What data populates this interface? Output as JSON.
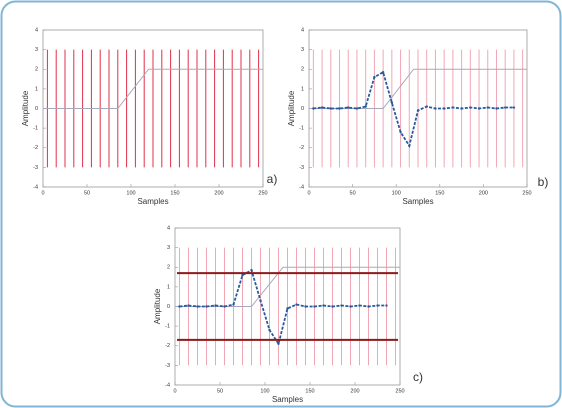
{
  "chart_data": [
    {
      "type": "line",
      "label": "a)",
      "xlabel": "Samples",
      "ylabel": "Amplitude",
      "xlim": [
        0,
        250
      ],
      "ylim": [
        -4,
        4
      ],
      "xticks": [
        0,
        50,
        100,
        150,
        200,
        250
      ],
      "yticks": [
        -4,
        -3,
        -2,
        -1,
        0,
        1,
        2,
        3,
        4
      ],
      "stems": {
        "x": [
          5,
          15,
          25,
          35,
          45,
          55,
          65,
          75,
          85,
          95,
          105,
          115,
          125,
          135,
          145,
          155,
          165,
          175,
          185,
          195,
          205,
          215,
          225,
          235,
          245
        ],
        "ymin": -3,
        "ymax": 3,
        "color": "#e0304a"
      },
      "series": [
        {
          "x": [
            0,
            85,
            120,
            250
          ],
          "values": [
            0,
            0,
            2,
            2
          ],
          "color": "#a8a8bc"
        }
      ]
    },
    {
      "type": "line",
      "label": "b)",
      "xlabel": "Samples",
      "ylabel": "Amplitude",
      "xlim": [
        0,
        250
      ],
      "ylim": [
        -4,
        4
      ],
      "xticks": [
        0,
        50,
        100,
        150,
        200,
        250
      ],
      "yticks": [
        -4,
        -3,
        -2,
        -1,
        0,
        1,
        2,
        3,
        4
      ],
      "stems": {
        "x": [
          5,
          15,
          25,
          35,
          45,
          55,
          65,
          75,
          85,
          95,
          105,
          115,
          125,
          135,
          145,
          155,
          165,
          175,
          185,
          195,
          205,
          215,
          225,
          235,
          245
        ],
        "ymin": -3,
        "ymax": 3,
        "color": "#f2a6b4"
      },
      "series": [
        {
          "x": [
            0,
            85,
            120,
            250
          ],
          "values": [
            0,
            0,
            2,
            2
          ],
          "color": "#a8a8bc"
        },
        {
          "x": [
            5,
            15,
            25,
            35,
            45,
            55,
            65,
            75,
            85,
            95,
            105,
            115,
            125,
            135,
            145,
            155,
            165,
            175,
            185,
            195,
            205,
            215,
            225,
            235
          ],
          "values": [
            0,
            0.05,
            0,
            0,
            0.05,
            0,
            0.1,
            1.6,
            1.85,
            0.3,
            -1.2,
            -1.9,
            -0.1,
            0.1,
            0,
            0,
            0.05,
            0,
            0.05,
            0,
            0.05,
            0,
            0.05,
            0.05
          ],
          "color": "#2a5a9a",
          "dashed": true
        }
      ]
    },
    {
      "type": "line",
      "label": "c)",
      "xlabel": "Samples",
      "ylabel": "Amplitude",
      "xlim": [
        0,
        250
      ],
      "ylim": [
        -4,
        4
      ],
      "xticks": [
        0,
        50,
        100,
        150,
        200,
        250
      ],
      "yticks": [
        -4,
        -3,
        -2,
        -1,
        0,
        1,
        2,
        3,
        4
      ],
      "stems": {
        "x": [
          5,
          15,
          25,
          35,
          45,
          55,
          65,
          75,
          85,
          95,
          105,
          115,
          125,
          135,
          145,
          155,
          165,
          175,
          185,
          195,
          205,
          215,
          225,
          235,
          245
        ],
        "ymin": -3,
        "ymax": 3,
        "color": "#f2a6b4"
      },
      "hlines": {
        "values": [
          1.7,
          -1.7
        ],
        "color": "#8b1a1a"
      },
      "series": [
        {
          "x": [
            0,
            85,
            120,
            250
          ],
          "values": [
            0,
            0,
            2,
            2
          ],
          "color": "#a8a8bc"
        },
        {
          "x": [
            5,
            15,
            25,
            35,
            45,
            55,
            65,
            75,
            85,
            95,
            105,
            115,
            125,
            135,
            145,
            155,
            165,
            175,
            185,
            195,
            205,
            215,
            225,
            235
          ],
          "values": [
            0,
            0.05,
            0,
            0,
            0.05,
            0,
            0.1,
            1.6,
            1.85,
            0.3,
            -1.2,
            -1.9,
            -0.1,
            0.1,
            0,
            0,
            0.05,
            0,
            0.05,
            0,
            0.05,
            0,
            0.05,
            0.05
          ],
          "color": "#2a5a9a",
          "dashed": true
        }
      ]
    }
  ]
}
